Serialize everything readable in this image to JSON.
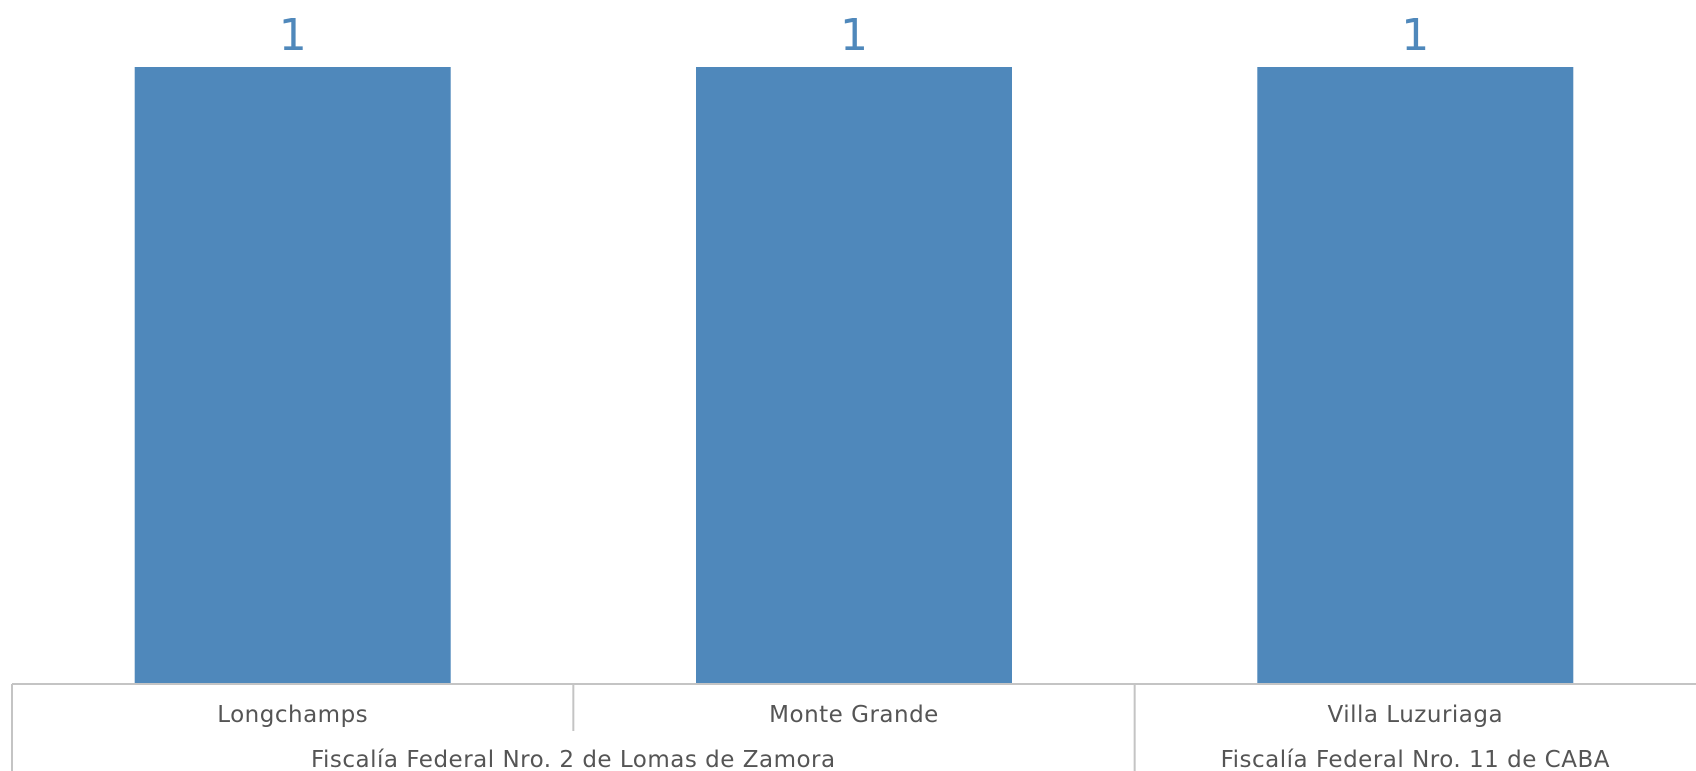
{
  "chart_data": {
    "type": "bar",
    "categories": [
      "Longchamps",
      "Monte Grande",
      "Villa Luzuriaga"
    ],
    "groups": [
      {
        "label": "Fiscalía Federal Nro. 2 de Lomas de Zamora",
        "categories": [
          "Longchamps",
          "Monte Grande"
        ]
      },
      {
        "label": "Fiscalía Federal Nro. 11 de CABA",
        "categories": [
          "Villa Luzuriaga"
        ]
      }
    ],
    "values": [
      1,
      1,
      1
    ],
    "ylim": [
      0,
      1
    ],
    "grid": false,
    "legend": "none",
    "colors": {
      "bar": "#4f88bb",
      "value_label": "#4f88bb",
      "axis_text": "#555555",
      "axis_line": "#c4c4c4"
    }
  }
}
